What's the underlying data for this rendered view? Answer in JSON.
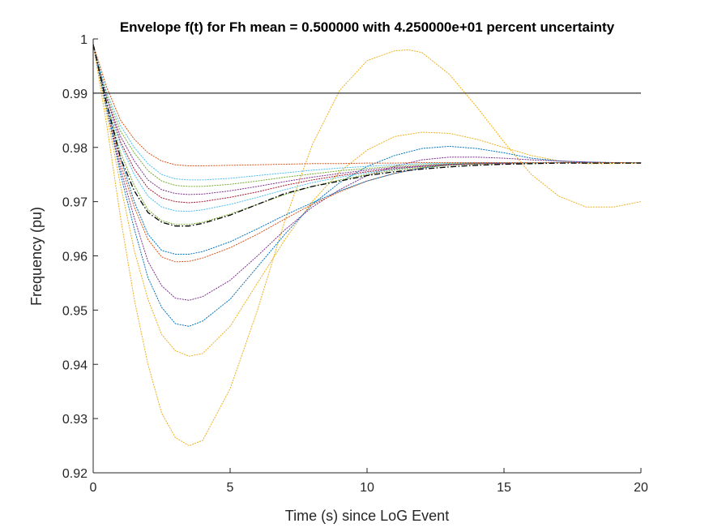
{
  "chart_data": {
    "type": "line",
    "title": "Envelope f(t) for Fh mean = 0.500000 with 4.250000e+01 percent uncertainty",
    "xlabel": "Time (s) since LoG Event",
    "ylabel": "Frequency (pu)",
    "xlim": [
      0,
      20
    ],
    "ylim": [
      0.92,
      1.0
    ],
    "xticks": [
      0,
      5,
      10,
      15,
      20
    ],
    "xtick_labels": [
      "0",
      "5",
      "10",
      "15",
      "20"
    ],
    "yticks": [
      0.92,
      0.93,
      0.94,
      0.95,
      0.96,
      0.97,
      0.98,
      0.99,
      1.0
    ],
    "ytick_labels": [
      "0.92",
      "0.93",
      "0.94",
      "0.95",
      "0.96",
      "0.97",
      "0.98",
      "0.99",
      "1"
    ],
    "grid": false,
    "legend": "none",
    "reference_line": {
      "y": 0.99,
      "color": "#000000",
      "style": "solid"
    },
    "mean_curve": {
      "style": "dash-dot",
      "color": "#000000",
      "x": [
        0,
        0.5,
        1,
        1.5,
        2,
        2.5,
        3,
        3.5,
        4,
        5,
        6,
        7,
        8,
        9,
        10,
        11,
        12,
        13,
        14,
        15,
        16,
        17,
        18,
        19,
        20
      ],
      "y": [
        0.999,
        0.988,
        0.978,
        0.972,
        0.968,
        0.9662,
        0.9655,
        0.9655,
        0.966,
        0.9675,
        0.9695,
        0.9715,
        0.9728,
        0.9738,
        0.9748,
        0.9755,
        0.976,
        0.9764,
        0.9767,
        0.9769,
        0.977,
        0.9771,
        0.9771,
        0.9771,
        0.9771
      ]
    },
    "series": [
      {
        "color": "#EDB120",
        "x": [
          0,
          0.5,
          1,
          1.5,
          2,
          2.5,
          3,
          3.5,
          4,
          5,
          6,
          7,
          8,
          9,
          10,
          11,
          11.5,
          12,
          13,
          14,
          15,
          16,
          17,
          18,
          19,
          20
        ],
        "y": [
          0.999,
          0.984,
          0.967,
          0.952,
          0.94,
          0.931,
          0.9265,
          0.925,
          0.926,
          0.9355,
          0.95,
          0.9665,
          0.9805,
          0.9905,
          0.996,
          0.9978,
          0.998,
          0.9975,
          0.9935,
          0.9875,
          0.981,
          0.975,
          0.971,
          0.969,
          0.969,
          0.97
        ]
      },
      {
        "color": "#EDB120",
        "x": [
          0,
          0.5,
          1,
          1.5,
          2,
          2.5,
          3,
          3.5,
          4,
          5,
          6,
          7,
          8,
          9,
          10,
          11,
          12,
          13,
          14,
          15,
          16,
          17,
          18,
          19,
          20
        ],
        "y": [
          0.999,
          0.986,
          0.973,
          0.961,
          0.952,
          0.9455,
          0.9425,
          0.9415,
          0.942,
          0.947,
          0.955,
          0.963,
          0.97,
          0.9755,
          0.9795,
          0.982,
          0.9828,
          0.9826,
          0.9815,
          0.98,
          0.9785,
          0.9775,
          0.977,
          0.977,
          0.9771
        ]
      },
      {
        "color": "#0072BD",
        "x": [
          0,
          0.5,
          1,
          1.5,
          2,
          2.5,
          3,
          3.5,
          4,
          5,
          6,
          7,
          8,
          9,
          10,
          11,
          12,
          13,
          14,
          15,
          16,
          17,
          18,
          19,
          20
        ],
        "y": [
          0.999,
          0.987,
          0.975,
          0.965,
          0.956,
          0.9505,
          0.9475,
          0.947,
          0.948,
          0.952,
          0.958,
          0.964,
          0.9695,
          0.9735,
          0.9765,
          0.9785,
          0.9798,
          0.9802,
          0.9798,
          0.979,
          0.978,
          0.9775,
          0.9773,
          0.9772,
          0.9772
        ]
      },
      {
        "color": "#7E2F8E",
        "x": [
          0,
          0.5,
          1,
          1.5,
          2,
          2.5,
          3,
          3.5,
          4,
          5,
          6,
          7,
          8,
          9,
          10,
          11,
          12,
          13,
          14,
          15,
          16,
          17,
          18,
          19,
          20
        ],
        "y": [
          0.999,
          0.987,
          0.976,
          0.967,
          0.959,
          0.9545,
          0.9522,
          0.9518,
          0.9525,
          0.9555,
          0.96,
          0.9648,
          0.969,
          0.9722,
          0.9748,
          0.9765,
          0.9777,
          0.9782,
          0.9782,
          0.978,
          0.9777,
          0.9775,
          0.9773,
          0.9772,
          0.9772
        ]
      },
      {
        "color": "#D95319",
        "x": [
          0,
          0.5,
          1,
          1.5,
          2,
          2.5,
          3,
          3.5,
          4,
          5,
          6,
          7,
          8,
          9,
          10,
          11,
          12,
          13,
          14,
          15,
          16,
          17,
          18,
          19,
          20
        ],
        "y": [
          0.999,
          0.987,
          0.977,
          0.969,
          0.963,
          0.9598,
          0.9589,
          0.959,
          0.9596,
          0.9615,
          0.964,
          0.9668,
          0.9695,
          0.9718,
          0.9738,
          0.9752,
          0.9762,
          0.9768,
          0.9771,
          0.9772,
          0.9772,
          0.9772,
          0.9772,
          0.9772,
          0.9772
        ]
      },
      {
        "color": "#0072BD",
        "x": [
          0,
          0.5,
          1,
          1.5,
          2,
          2.5,
          3,
          3.5,
          4,
          5,
          6,
          7,
          8,
          9,
          10,
          11,
          12,
          13,
          14,
          15,
          16,
          17,
          18,
          19,
          20
        ],
        "y": [
          0.999,
          0.987,
          0.978,
          0.97,
          0.964,
          0.961,
          0.9603,
          0.9603,
          0.9608,
          0.9626,
          0.965,
          0.9675,
          0.9698,
          0.972,
          0.9738,
          0.9752,
          0.9762,
          0.9768,
          0.977,
          0.9771,
          0.9772,
          0.9772,
          0.9772,
          0.9772,
          0.9772
        ]
      },
      {
        "color": "#77AC30",
        "x": [
          0,
          0.5,
          1,
          1.5,
          2,
          2.5,
          3,
          3.5,
          4,
          5,
          6,
          7,
          8,
          9,
          10,
          11,
          12,
          13,
          14,
          15,
          16,
          17,
          18,
          19,
          20
        ],
        "y": [
          0.999,
          0.988,
          0.979,
          0.973,
          0.9685,
          0.9665,
          0.9658,
          0.9658,
          0.9662,
          0.9677,
          0.9695,
          0.9713,
          0.9728,
          0.974,
          0.975,
          0.9758,
          0.9763,
          0.9767,
          0.9769,
          0.977,
          0.9771,
          0.9772,
          0.9772,
          0.9772,
          0.9772
        ]
      },
      {
        "color": "#4DBEEE",
        "x": [
          0,
          0.5,
          1,
          1.5,
          2,
          2.5,
          3,
          3.5,
          4,
          5,
          6,
          7,
          8,
          9,
          10,
          11,
          12,
          13,
          14,
          15,
          16,
          17,
          18,
          19,
          20
        ],
        "y": [
          0.999,
          0.988,
          0.9805,
          0.975,
          0.971,
          0.969,
          0.9683,
          0.9682,
          0.9685,
          0.9695,
          0.9708,
          0.9722,
          0.9735,
          0.9745,
          0.9753,
          0.976,
          0.9765,
          0.9768,
          0.977,
          0.9771,
          0.9772,
          0.9772,
          0.9772,
          0.9772,
          0.9772
        ]
      },
      {
        "color": "#A2142F",
        "x": [
          0,
          0.5,
          1,
          1.5,
          2,
          2.5,
          3,
          3.5,
          4,
          5,
          6,
          7,
          8,
          9,
          10,
          11,
          12,
          13,
          14,
          15,
          16,
          17,
          18,
          19,
          20
        ],
        "y": [
          0.999,
          0.989,
          0.981,
          0.976,
          0.9725,
          0.9707,
          0.97,
          0.9698,
          0.97,
          0.9708,
          0.9718,
          0.973,
          0.974,
          0.9748,
          0.9755,
          0.9761,
          0.9765,
          0.9768,
          0.977,
          0.9771,
          0.9772,
          0.9772,
          0.9772,
          0.9772,
          0.9772
        ]
      },
      {
        "color": "#7E2F8E",
        "x": [
          0,
          0.5,
          1,
          1.5,
          2,
          2.5,
          3,
          3.5,
          4,
          5,
          6,
          7,
          8,
          9,
          10,
          11,
          12,
          13,
          14,
          15,
          16,
          17,
          18,
          19,
          20
        ],
        "y": [
          0.999,
          0.989,
          0.982,
          0.9775,
          0.974,
          0.9722,
          0.9715,
          0.9713,
          0.9714,
          0.972,
          0.9728,
          0.9737,
          0.9745,
          0.9752,
          0.9758,
          0.9763,
          0.9766,
          0.9769,
          0.977,
          0.9771,
          0.9772,
          0.9772,
          0.9772,
          0.9772,
          0.9772
        ]
      },
      {
        "color": "#77AC30",
        "x": [
          0,
          0.5,
          1,
          1.5,
          2,
          2.5,
          3,
          3.5,
          4,
          5,
          6,
          7,
          8,
          9,
          10,
          11,
          12,
          13,
          14,
          15,
          16,
          17,
          18,
          19,
          20
        ],
        "y": [
          0.999,
          0.9895,
          0.983,
          0.979,
          0.9757,
          0.9738,
          0.973,
          0.9728,
          0.9728,
          0.9732,
          0.9738,
          0.9745,
          0.9751,
          0.9757,
          0.9761,
          0.9765,
          0.9768,
          0.977,
          0.9771,
          0.9772,
          0.9772,
          0.9772,
          0.9772,
          0.9772,
          0.9772
        ]
      },
      {
        "color": "#4DBEEE",
        "x": [
          0,
          0.5,
          1,
          1.5,
          2,
          2.5,
          3,
          3.5,
          4,
          5,
          6,
          7,
          8,
          9,
          10,
          11,
          12,
          13,
          14,
          15,
          16,
          17,
          18,
          19,
          20
        ],
        "y": [
          0.999,
          0.99,
          0.984,
          0.98,
          0.977,
          0.975,
          0.9742,
          0.974,
          0.974,
          0.9743,
          0.9748,
          0.9753,
          0.9758,
          0.9762,
          0.9765,
          0.9768,
          0.977,
          0.9771,
          0.9772,
          0.9772,
          0.9772,
          0.9772,
          0.9772,
          0.9772,
          0.9772
        ]
      },
      {
        "color": "#D95319",
        "x": [
          0,
          0.5,
          1,
          1.5,
          2,
          2.5,
          3,
          3.5,
          4,
          5,
          6,
          7,
          8,
          9,
          10,
          11,
          12,
          13,
          14,
          15,
          16,
          17,
          18,
          19,
          20
        ],
        "y": [
          0.999,
          0.991,
          0.985,
          0.9815,
          0.979,
          0.9775,
          0.9768,
          0.9766,
          0.9766,
          0.9767,
          0.9768,
          0.9769,
          0.977,
          0.977,
          0.9771,
          0.9771,
          0.9772,
          0.9772,
          0.9772,
          0.9772,
          0.9772,
          0.9772,
          0.9772,
          0.9772,
          0.9772
        ]
      }
    ]
  }
}
